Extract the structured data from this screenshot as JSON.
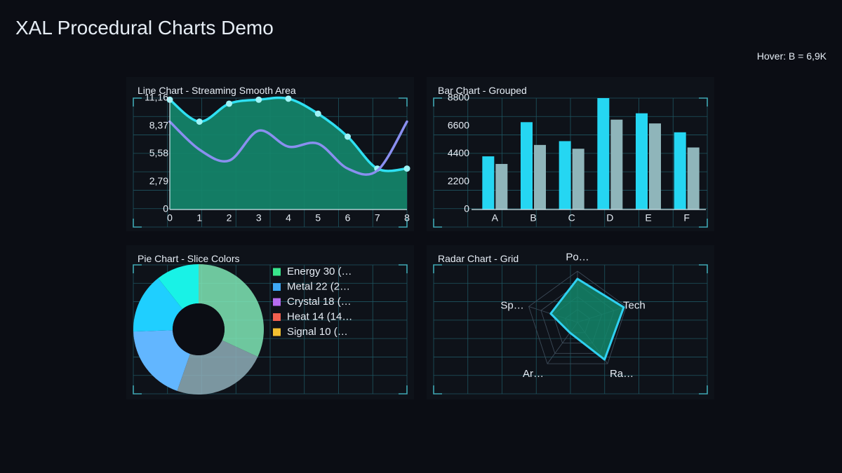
{
  "app": {
    "title": "XAL Procedural Charts Demo",
    "hover_text": "Hover: B = 6,9K"
  },
  "colors": {
    "background": "#0b0d14",
    "panel": "#0e1219",
    "grid": "#1f5560",
    "frame": "#3fa7b4",
    "accent_cyan": "#2fe0f2",
    "area_green": "#13866a"
  },
  "chart_data": [
    {
      "type": "line",
      "title": "Line Chart - Streaming Smooth Area",
      "x": [
        0,
        1,
        2,
        3,
        4,
        5,
        6,
        7,
        8
      ],
      "x_ticks": [
        "0",
        "1",
        "2",
        "3",
        "4",
        "5",
        "6",
        "7",
        "8"
      ],
      "y_ticks": [
        "0",
        "2,79",
        "5,58",
        "8,37",
        "11,16"
      ],
      "ylim": [
        0,
        11.16
      ],
      "xlim": [
        0,
        8
      ],
      "grid": true,
      "series": [
        {
          "values": [
            11.0,
            8.8,
            10.6,
            11.0,
            11.1,
            9.6,
            7.3,
            4.1,
            4.1
          ],
          "color": "#2fe0f2",
          "fill": "#13866a",
          "markers": true
        },
        {
          "values": [
            8.8,
            6.0,
            4.9,
            7.9,
            6.3,
            6.6,
            4.1,
            3.9,
            8.8
          ],
          "color": "#8a8ff0",
          "markers": false
        }
      ]
    },
    {
      "type": "bar",
      "title": "Bar Chart - Grouped",
      "categories": [
        "A",
        "B",
        "C",
        "D",
        "E",
        "F"
      ],
      "y_ticks": [
        "0",
        "2200",
        "4400",
        "6600",
        "8800"
      ],
      "ylim": [
        0,
        8800
      ],
      "grid": true,
      "series": [
        {
          "values": [
            4200,
            6900,
            5400,
            8800,
            7600,
            6100
          ],
          "color": "#25d6f2"
        },
        {
          "values": [
            3600,
            5100,
            4800,
            7100,
            6800,
            4900
          ],
          "color": "#8fb5ba"
        }
      ]
    },
    {
      "type": "pie",
      "title": "Pie Chart - Slice Colors",
      "donut": true,
      "slices": [
        {
          "label": "Energy",
          "value": 30,
          "color": "#7fe8b6",
          "legend_text": "Energy  30 (…",
          "swatch": "#39e58c"
        },
        {
          "label": "Metal",
          "value": 22,
          "color": "#8eaeb8",
          "legend_text": "Metal  22 (2…",
          "swatch": "#3ea8f5"
        },
        {
          "label": "Crystal",
          "value": 18,
          "color": "#62b6ff",
          "legend_text": "Crystal  18 (…",
          "swatch": "#b56cf0"
        },
        {
          "label": "Heat",
          "value": 14,
          "color": "#1fcfff",
          "legend_text": "Heat  14 (14…",
          "swatch": "#f06050"
        },
        {
          "label": "Signal",
          "value": 10,
          "color": "#19f2e6",
          "legend_text": "Signal  10 (…",
          "swatch": "#f2c030"
        }
      ]
    },
    {
      "type": "radar",
      "title": "Radar Chart - Grid",
      "axes": [
        "Po…",
        "Tech",
        "Ra…",
        "Ar…",
        "Sp…"
      ],
      "values": [
        0.85,
        0.95,
        0.9,
        0.25,
        0.55
      ],
      "max": 1,
      "grid": true,
      "color": "#2fd0f0",
      "fill": "#13866a"
    }
  ]
}
